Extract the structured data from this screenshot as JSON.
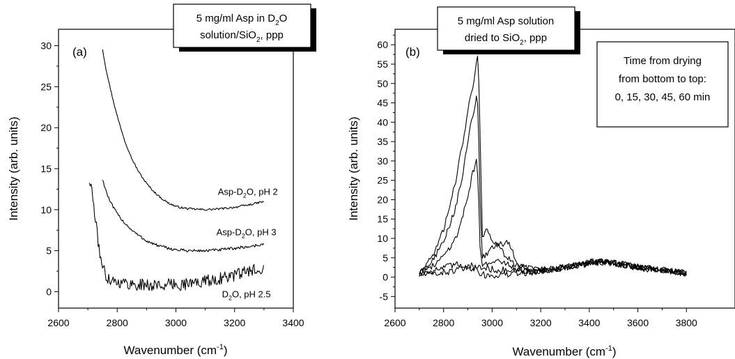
{
  "chart_data": [
    {
      "panel": "a",
      "type": "line",
      "panel_label": "(a)",
      "title_box": {
        "line1": "5 mg/ml Asp in D",
        "line1_sub": "2",
        "line1_end": "O",
        "line2": "solution/SiO",
        "line2_sub": "2",
        "line2_end": ", ppp"
      },
      "xlabel": "Wavenumber (cm",
      "xlabel_sup": "-1",
      "xlabel_end": ")",
      "ylabel": "Intensity (arb. units)",
      "xlim": [
        2600,
        3400
      ],
      "ylim": [
        -2,
        32
      ],
      "xticks": [
        2600,
        2800,
        3000,
        3200,
        3400
      ],
      "yticks": [
        0,
        5,
        10,
        15,
        20,
        25,
        30
      ],
      "series": [
        {
          "name": "Asp-D2O, pH 2",
          "label_parts": [
            "Asp-D",
            "2",
            "O, pH 2"
          ],
          "label_x": 3245,
          "label_y": 11.8,
          "x": [
            2750,
            2760,
            2775,
            2790,
            2800,
            2825,
            2850,
            2875,
            2900,
            2925,
            2950,
            2975,
            3000,
            3025,
            3050,
            3100,
            3150,
            3200,
            3250,
            3300
          ],
          "y": [
            29.6,
            27.5,
            25.0,
            22.8,
            21.4,
            18.5,
            16.2,
            14.5,
            13.2,
            12.2,
            11.4,
            10.8,
            10.4,
            10.2,
            10.1,
            10.0,
            10.1,
            10.3,
            10.6,
            11.0
          ],
          "noise": 0.12
        },
        {
          "name": "Asp-D2O, pH 3",
          "label_parts": [
            "Asp-D",
            "2",
            "O, pH 3"
          ],
          "label_x": 3240,
          "label_y": 6.9,
          "x": [
            2750,
            2760,
            2775,
            2800,
            2825,
            2850,
            2875,
            2900,
            2925,
            2950,
            2975,
            3000,
            3050,
            3100,
            3150,
            3200,
            3250,
            3300
          ],
          "y": [
            13.7,
            12.5,
            11.0,
            9.5,
            8.4,
            7.5,
            6.8,
            6.2,
            5.8,
            5.5,
            5.3,
            5.1,
            5.0,
            5.0,
            5.1,
            5.3,
            5.5,
            5.8
          ],
          "noise": 0.18
        },
        {
          "name": "D2O, pH 2.5",
          "label_parts": [
            "D",
            "2",
            "O, pH 2.5"
          ],
          "label_x": 3240,
          "label_y": -0.7,
          "x": [
            2705,
            2715,
            2725,
            2735,
            2745,
            2755,
            2765,
            2780,
            2800,
            2850,
            2900,
            2950,
            3000,
            3050,
            3100,
            3150,
            3200,
            3250,
            3300
          ],
          "y": [
            13.6,
            12.0,
            9.0,
            6.0,
            4.0,
            2.5,
            1.8,
            1.5,
            1.2,
            0.9,
            0.8,
            0.8,
            0.9,
            1.0,
            1.3,
            1.6,
            2.0,
            2.5,
            3.0
          ],
          "noise": 0.75
        }
      ]
    },
    {
      "panel": "b",
      "type": "line",
      "panel_label": "(b)",
      "title_box": {
        "line1": "5 mg/ml Asp solution",
        "line2": "dried to SiO",
        "line2_sub": "2",
        "line2_end": ", ppp"
      },
      "legend_box": {
        "lines": [
          "Time from drying",
          "from bottom to top:",
          "0, 15, 30, 45, 60 min"
        ]
      },
      "xlabel": "Wavenumber (cm",
      "xlabel_sup": "-1",
      "xlabel_end": ")",
      "ylabel": "Intensity (arb. units)",
      "xlim": [
        2600,
        4000
      ],
      "ylim": [
        -8,
        64
      ],
      "xticks": [
        2600,
        2800,
        3000,
        3200,
        3400,
        3600,
        3800
      ],
      "yticks": [
        -5,
        0,
        5,
        10,
        15,
        20,
        25,
        30,
        35,
        40,
        45,
        50,
        55,
        60
      ],
      "series": [
        {
          "name": "0 min",
          "x": [
            2700,
            2800,
            2900,
            2950,
            3000,
            3100,
            3200,
            3300,
            3400,
            3450,
            3500,
            3600,
            3700,
            3800
          ],
          "y": [
            0.5,
            1.2,
            2.3,
            2.5,
            2.0,
            1.5,
            1.8,
            2.5,
            3.5,
            3.8,
            3.5,
            2.5,
            1.8,
            1.0
          ],
          "noise": 0.9
        },
        {
          "name": "15 min",
          "x": [
            2700,
            2750,
            2800,
            2850,
            2900,
            2925,
            2935,
            2945,
            2960,
            2990,
            3050,
            3100,
            3200,
            3300,
            3400,
            3450,
            3500,
            3600,
            3700,
            3800
          ],
          "y": [
            1.0,
            1.6,
            2.4,
            3.2,
            3.0,
            2.8,
            2.2,
            1.3,
            0.6,
            0.4,
            0.6,
            0.9,
            1.6,
            2.6,
            3.6,
            3.9,
            3.6,
            2.6,
            1.8,
            1.0
          ],
          "noise": 0.9
        },
        {
          "name": "30 min",
          "x": [
            2700,
            2750,
            2800,
            2850,
            2880,
            2900,
            2920,
            2935,
            2942,
            2950,
            2960,
            2980,
            3000,
            3050,
            3080,
            3100,
            3150,
            3200,
            3300,
            3400,
            3450,
            3500,
            3600,
            3700,
            3800
          ],
          "y": [
            0.8,
            2.5,
            5.5,
            10.0,
            16.0,
            21.0,
            27.0,
            30.0,
            25.0,
            8.0,
            3.5,
            3.0,
            4.5,
            4.0,
            3.0,
            2.0,
            1.2,
            1.4,
            2.5,
            3.6,
            4.0,
            3.6,
            2.6,
            1.8,
            1.0
          ],
          "noise": 0.8
        },
        {
          "name": "45 min",
          "x": [
            2700,
            2750,
            2800,
            2850,
            2880,
            2900,
            2920,
            2935,
            2942,
            2950,
            2960,
            2980,
            3000,
            3040,
            3060,
            3080,
            3100,
            3150,
            3200,
            3300,
            3400,
            3450,
            3500,
            3600,
            3700,
            3800
          ],
          "y": [
            1.0,
            4.0,
            9.0,
            18.0,
            27.0,
            35.0,
            42.0,
            46.0,
            44.0,
            20.0,
            5.0,
            6.0,
            8.0,
            8.5,
            9.0,
            7.5,
            4.0,
            1.5,
            1.5,
            2.5,
            3.8,
            4.2,
            3.8,
            2.6,
            1.8,
            1.0
          ],
          "noise": 0.8
        },
        {
          "name": "60 min",
          "x": [
            2700,
            2750,
            2800,
            2850,
            2880,
            2900,
            2920,
            2935,
            2942,
            2950,
            2960,
            2975,
            3000,
            3050,
            3100,
            3200,
            3300,
            3400,
            3450,
            3500,
            3600,
            3700,
            3800
          ],
          "y": [
            1.2,
            5.0,
            12.0,
            25.0,
            35.0,
            43.0,
            49.0,
            56.0,
            57.0,
            38.0,
            10.0,
            12.0,
            10.0,
            6.0,
            3.0,
            2.0,
            2.5,
            3.8,
            4.2,
            3.8,
            2.6,
            1.8,
            1.0
          ],
          "noise": 0.8
        }
      ]
    }
  ]
}
